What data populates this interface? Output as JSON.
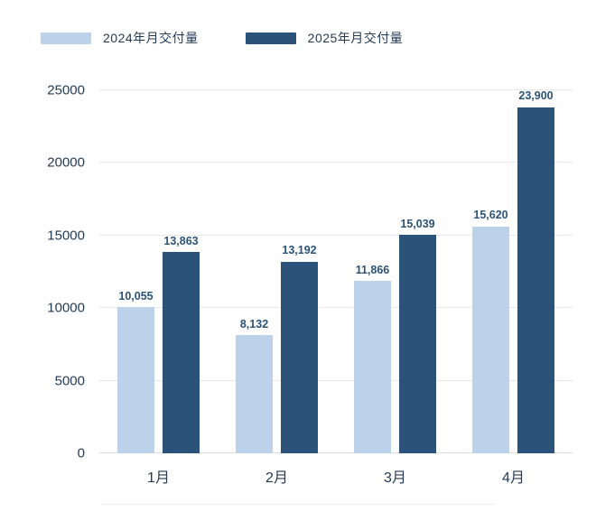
{
  "legend": {
    "items": [
      {
        "label": "2024年月交付量",
        "color": "#bcd1ea"
      },
      {
        "label": "2025年月交付量",
        "color": "#2b5379"
      }
    ]
  },
  "chart_data": {
    "type": "bar",
    "title": "",
    "xlabel": "",
    "ylabel": "",
    "categories": [
      "1月",
      "2月",
      "3月",
      "4月"
    ],
    "series": [
      {
        "name": "2024年月交付量",
        "color": "#bcd1ea",
        "values": [
          10055,
          8132,
          11866,
          15620
        ],
        "labels": [
          "10,055",
          "8,132",
          "11,866",
          "15,620"
        ]
      },
      {
        "name": "2025年月交付量",
        "color": "#2b5379",
        "values": [
          13863,
          13192,
          15039,
          23900
        ],
        "labels": [
          "13,863",
          "13,192",
          "15,039",
          "23,900"
        ]
      }
    ],
    "ylim": [
      0,
      25000
    ],
    "yticks": [
      0,
      5000,
      10000,
      15000,
      20000,
      25000
    ],
    "ytick_labels": [
      "0",
      "5000",
      "10000",
      "15000",
      "20000",
      "25000"
    ],
    "grid": true,
    "legend_position": "top-left",
    "value_label_color": "#2b5379",
    "axis_text_color": "#243b53"
  }
}
